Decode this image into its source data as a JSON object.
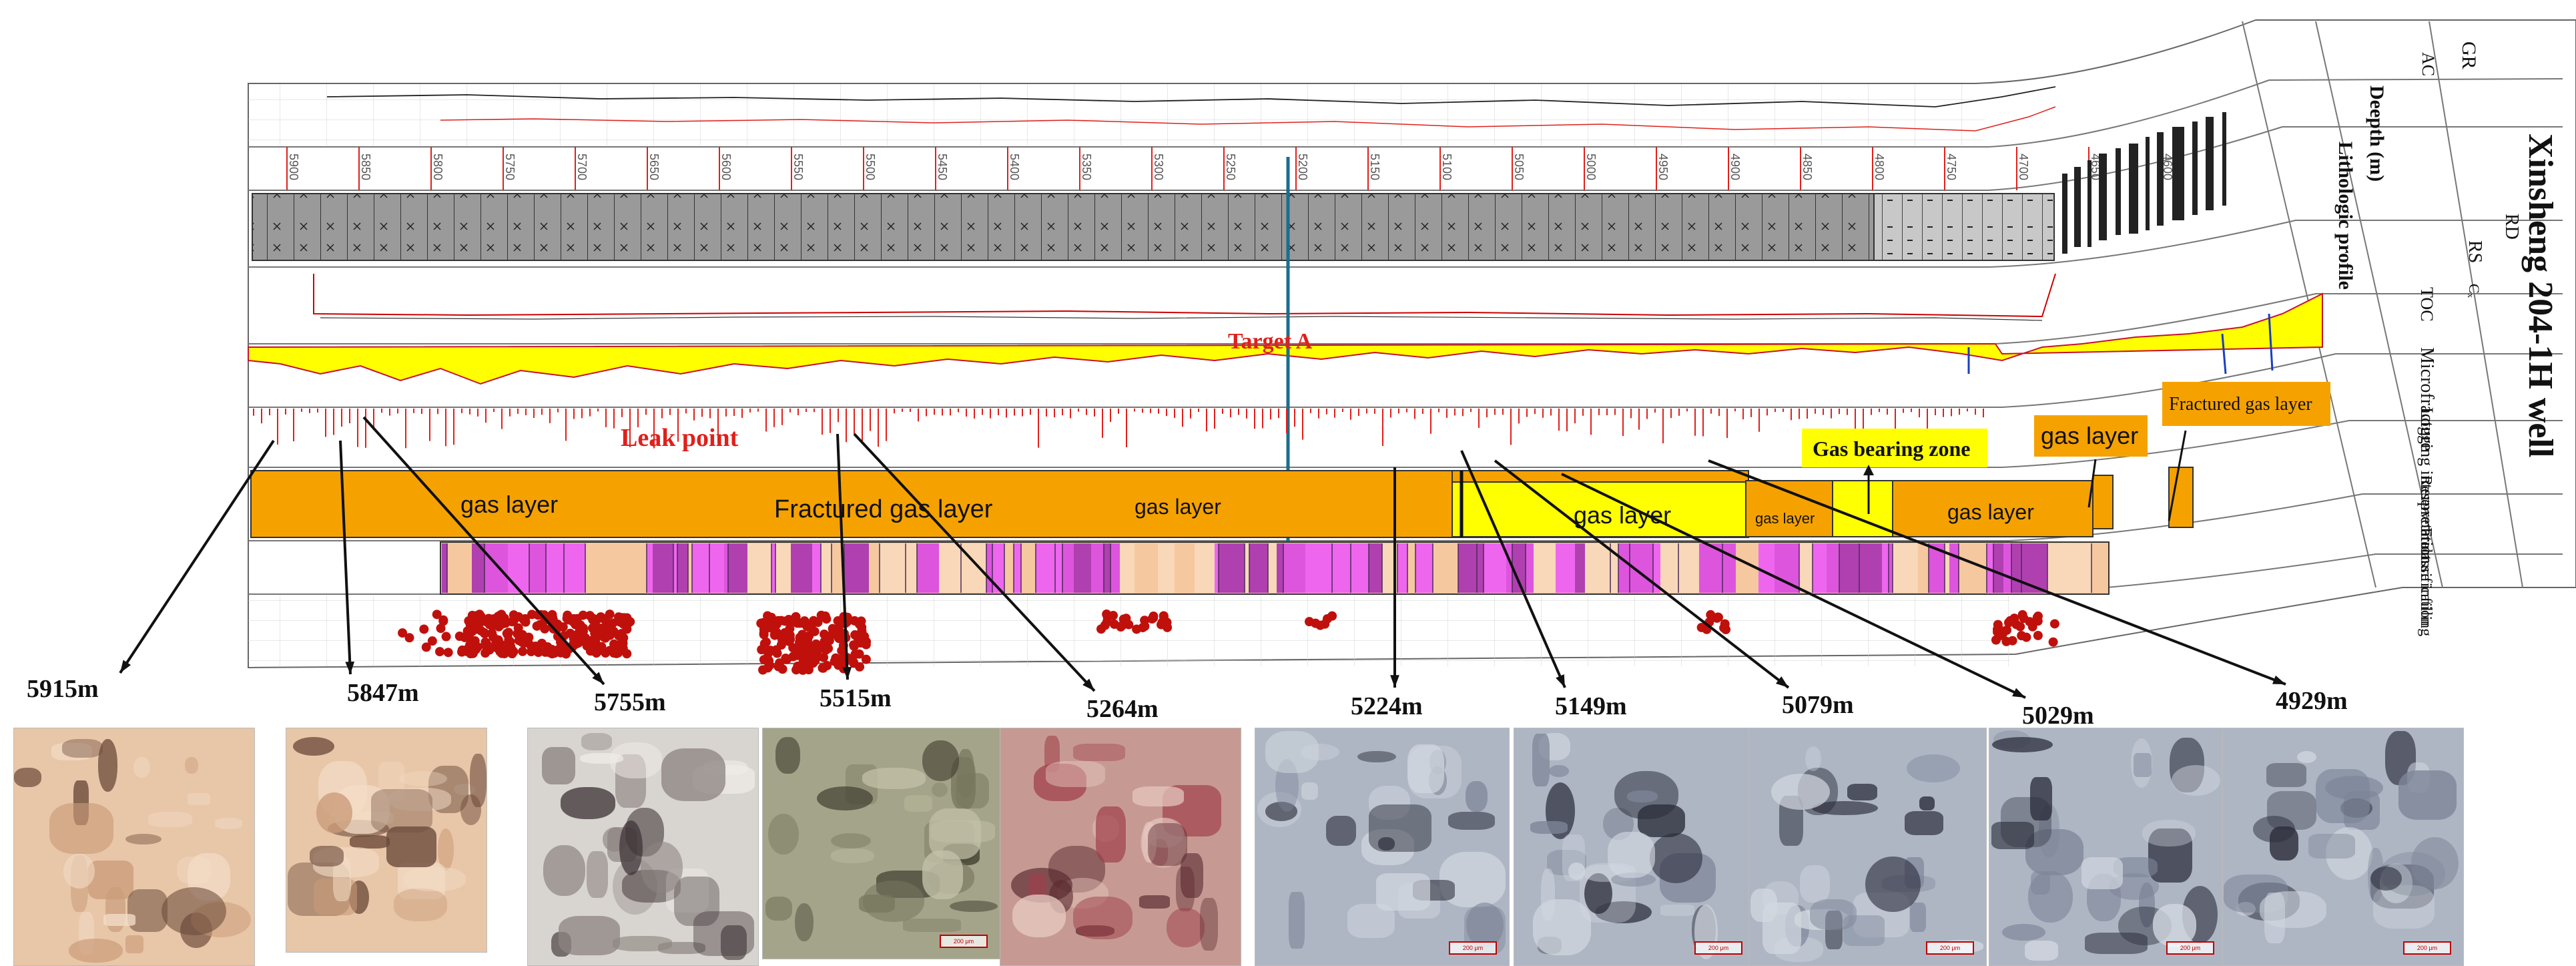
{
  "title": "Xinsheng 204-1H well",
  "header_columns": {
    "curve1": "GR",
    "curve2": "AC",
    "depth": "Deepth (m)",
    "lithologic": "Lithologic profile",
    "resist1": "RD",
    "resist2": "RS",
    "toc": "TOC",
    "toc_unit": "Cₓ",
    "micro": "Microfracture",
    "logging": "Logging interpretation",
    "reservoir": "Reservoir classification",
    "fracture": "Fracture infilling"
  },
  "annotations": {
    "target": "Target A",
    "leak": "Leak point",
    "gas_bearing_zone": "Gas bearing zone",
    "callout_gas_layer": "gas layer",
    "callout_fractured": "Fractured gas layer"
  },
  "reservoir_labels": [
    {
      "label": "gas layer",
      "color": "#f5a200"
    },
    {
      "label": "Fractured gas layer",
      "color": "#f5a200"
    },
    {
      "label": "gas layer",
      "color": "#f5a200"
    },
    {
      "label": "gas layer",
      "color": "#ffff00"
    },
    {
      "label": "gas layer",
      "color": "#f5a200"
    },
    {
      "label": "gas layer",
      "color": "#f5a200"
    }
  ],
  "depth_ticks": [
    "5900",
    "5850",
    "5800",
    "5750",
    "5700",
    "5650",
    "5600",
    "5550",
    "5500",
    "5450",
    "5400",
    "5350",
    "5300",
    "5250",
    "5200",
    "5150",
    "5100",
    "5050",
    "5000",
    "4950",
    "4900",
    "4850",
    "4800",
    "4750",
    "4700",
    "4650",
    "4600"
  ],
  "samples": [
    {
      "depth": "5915m",
      "tone": "pink"
    },
    {
      "depth": "5847m",
      "tone": "pink"
    },
    {
      "depth": "5755m",
      "tone": "grey"
    },
    {
      "depth": "5515m",
      "tone": "green"
    },
    {
      "depth": "5264m",
      "tone": "red"
    },
    {
      "depth": "5224m",
      "tone": "blue"
    },
    {
      "depth": "5149m",
      "tone": "blue"
    },
    {
      "depth": "5079m",
      "tone": "blue"
    },
    {
      "depth": "5029m",
      "tone": "blue"
    },
    {
      "depth": "4929m",
      "tone": "blue"
    }
  ],
  "scale_label": "200 μm",
  "colors": {
    "gas_layer": "#f5a200",
    "gas_bearing": "#ffff00",
    "fracture_fill_pink": "#ee66ee",
    "fracture_fill_tan": "#f5c8a0",
    "leak_red": "#e0201b",
    "target_line": "#1a6e8c",
    "dot": "#c0100c"
  }
}
